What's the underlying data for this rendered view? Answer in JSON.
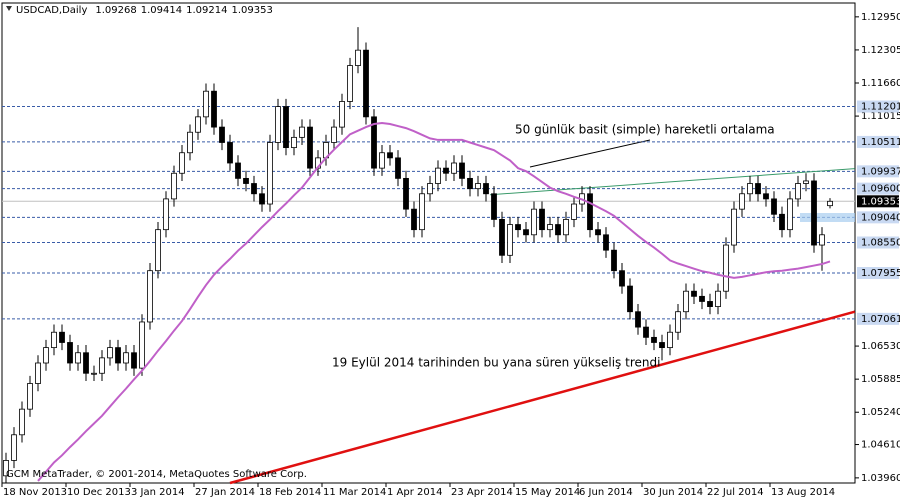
{
  "chart_data": {
    "type": "candlestick",
    "symbol": "USDCAD,Daily",
    "categories": [
      "18 Nov 2013",
      null,
      null,
      null,
      null,
      null,
      null,
      null,
      "10 Dec 2013",
      null,
      null,
      null,
      null,
      null,
      null,
      null,
      "3 Jan 2014",
      null,
      null,
      null,
      null,
      null,
      null,
      null,
      "27 Jan 2014",
      null,
      null,
      null,
      null,
      null,
      null,
      null,
      "18 Feb 2014",
      null,
      null,
      null,
      null,
      null,
      null,
      null,
      "11 Mar 2014",
      null,
      null,
      null,
      null,
      null,
      null,
      null,
      "1 Apr 2014",
      null,
      null,
      null,
      null,
      null,
      null,
      null,
      "23 Apr 2014",
      null,
      null,
      null,
      null,
      null,
      null,
      null,
      "15 May 2014",
      null,
      null,
      null,
      null,
      null,
      null,
      null,
      "6 Jun 2014",
      null,
      null,
      null,
      null,
      null,
      null,
      null,
      "30 Jun 2014",
      null,
      null,
      null,
      null,
      null,
      null,
      null,
      "22 Jul 2014",
      null,
      null,
      null,
      null,
      null,
      null,
      null,
      "13 Aug 2014",
      null,
      null,
      null,
      null,
      null,
      null,
      null
    ],
    "open": [
      1.04,
      1.043,
      1.048,
      1.053,
      1.058,
      1.062,
      1.065,
      1.068,
      1.066,
      1.062,
      1.064,
      1.06,
      1.06,
      1.063,
      1.065,
      1.062,
      1.064,
      1.061,
      1.07,
      1.08,
      1.088,
      1.094,
      1.099,
      1.103,
      1.107,
      1.11,
      1.115,
      1.108,
      1.105,
      1.101,
      1.098,
      1.097,
      1.095,
      1.093,
      1.105,
      1.112,
      1.104,
      1.106,
      1.108,
      1.1,
      1.102,
      1.105,
      1.108,
      1.113,
      1.12,
      1.123,
      1.11,
      1.1,
      1.103,
      1.102,
      1.098,
      1.092,
      1.088,
      1.095,
      1.097,
      1.1,
      1.099,
      1.101,
      1.098,
      1.096,
      1.097,
      1.095,
      1.09,
      1.083,
      1.089,
      1.088,
      1.087,
      1.092,
      1.088,
      1.089,
      1.087,
      1.09,
      1.093,
      1.095,
      1.088,
      1.087,
      1.084,
      1.08,
      1.077,
      1.072,
      1.069,
      1.067,
      1.066,
      1.065,
      1.068,
      1.072,
      1.076,
      1.075,
      1.074,
      1.073,
      1.076,
      1.085,
      1.092,
      1.095,
      1.097,
      1.095,
      1.094,
      1.091,
      1.088,
      1.094,
      1.097,
      1.0975,
      1.085,
      1.09268
    ],
    "high": [
      1.0445,
      1.0495,
      1.0545,
      1.0595,
      1.0635,
      1.0665,
      1.0695,
      1.0695,
      1.0675,
      1.0655,
      1.0655,
      1.0615,
      1.0645,
      1.0665,
      1.0665,
      1.0655,
      1.0655,
      1.0715,
      1.0815,
      1.0895,
      1.0955,
      1.1005,
      1.1045,
      1.1085,
      1.1115,
      1.1165,
      1.1165,
      1.1095,
      1.1065,
      1.1025,
      1.0995,
      1.0985,
      1.0965,
      1.1065,
      1.1135,
      1.1135,
      1.1075,
      1.1095,
      1.1095,
      1.1035,
      1.1065,
      1.1095,
      1.1145,
      1.1215,
      1.1275,
      1.1245,
      1.1115,
      1.1045,
      1.1045,
      1.1035,
      1.0995,
      1.0935,
      1.0965,
      1.0985,
      1.1015,
      1.1015,
      1.1025,
      1.1025,
      1.0995,
      1.0985,
      1.0985,
      1.0965,
      1.0915,
      1.0905,
      1.0905,
      1.0895,
      1.0935,
      1.0935,
      1.0905,
      1.0905,
      1.0915,
      1.0945,
      1.0965,
      1.0965,
      1.0895,
      1.0885,
      1.0855,
      1.0815,
      1.0785,
      1.0735,
      1.0705,
      1.0685,
      1.0675,
      1.0695,
      1.0735,
      1.0775,
      1.0775,
      1.0765,
      1.0755,
      1.0775,
      1.0865,
      1.0935,
      1.0965,
      1.0985,
      1.0985,
      1.0965,
      1.0955,
      1.0925,
      1.0955,
      1.0985,
      1.099,
      1.099,
      1.0885,
      1.09414
    ],
    "low": [
      1.0385,
      1.0415,
      1.0465,
      1.0515,
      1.0565,
      1.0605,
      1.0635,
      1.0645,
      1.0605,
      1.0605,
      1.0585,
      1.0585,
      1.0585,
      1.0615,
      1.0605,
      1.0605,
      1.0595,
      1.0595,
      1.0685,
      1.0785,
      1.0865,
      1.0925,
      1.0975,
      1.1015,
      1.1055,
      1.1085,
      1.1065,
      1.1035,
      1.0995,
      1.0965,
      1.0955,
      1.0935,
      1.0915,
      1.0915,
      1.1035,
      1.1025,
      1.1025,
      1.1045,
      1.0985,
      1.0985,
      1.1005,
      1.1035,
      1.1065,
      1.1115,
      1.1185,
      1.1085,
      1.0985,
      1.0985,
      1.1005,
      1.0965,
      1.0905,
      1.0865,
      1.0865,
      1.0935,
      1.0955,
      1.0975,
      1.0975,
      1.0965,
      1.0945,
      1.0945,
      1.0935,
      1.0885,
      1.0815,
      1.0815,
      1.0865,
      1.0855,
      1.0855,
      1.0865,
      1.0865,
      1.0855,
      1.0855,
      1.0885,
      1.0915,
      1.0865,
      1.0855,
      1.0825,
      1.0785,
      1.0755,
      1.0705,
      1.0675,
      1.0655,
      1.0645,
      1.0625,
      1.0635,
      1.0665,
      1.0705,
      1.0735,
      1.0725,
      1.0715,
      1.0715,
      1.0745,
      1.0835,
      1.0905,
      1.0935,
      1.0935,
      1.0925,
      1.0895,
      1.0865,
      1.0865,
      1.0925,
      1.0955,
      1.0835,
      1.08,
      1.09214
    ],
    "close": [
      1.043,
      1.048,
      1.053,
      1.058,
      1.062,
      1.065,
      1.068,
      1.066,
      1.062,
      1.064,
      1.06,
      1.06,
      1.063,
      1.065,
      1.062,
      1.064,
      1.061,
      1.07,
      1.08,
      1.088,
      1.094,
      1.099,
      1.103,
      1.107,
      1.11,
      1.115,
      1.108,
      1.105,
      1.101,
      1.098,
      1.097,
      1.095,
      1.093,
      1.105,
      1.112,
      1.104,
      1.106,
      1.108,
      1.1,
      1.102,
      1.105,
      1.108,
      1.113,
      1.12,
      1.123,
      1.11,
      1.1,
      1.103,
      1.102,
      1.098,
      1.092,
      1.088,
      1.095,
      1.097,
      1.1,
      1.099,
      1.101,
      1.098,
      1.096,
      1.097,
      1.095,
      1.09,
      1.083,
      1.089,
      1.088,
      1.087,
      1.092,
      1.088,
      1.089,
      1.087,
      1.09,
      1.093,
      1.095,
      1.088,
      1.087,
      1.084,
      1.08,
      1.077,
      1.072,
      1.069,
      1.067,
      1.066,
      1.065,
      1.068,
      1.072,
      1.076,
      1.075,
      1.074,
      1.073,
      1.076,
      1.085,
      1.092,
      1.095,
      1.097,
      1.095,
      1.094,
      1.091,
      1.088,
      1.094,
      1.097,
      1.0975,
      1.085,
      1.087,
      1.09353
    ],
    "ma": {
      "color": "#c060c8",
      "values": [
        null,
        null,
        null,
        null,
        1.039,
        1.0408,
        1.0426,
        1.044,
        1.0456,
        1.0471,
        1.0487,
        1.0502,
        1.0517,
        1.0535,
        1.0553,
        1.057,
        1.0588,
        1.0605,
        1.0624,
        1.0644,
        1.0663,
        1.0683,
        1.0702,
        1.0725,
        1.0749,
        1.0772,
        1.0792,
        1.0808,
        1.0823,
        1.0839,
        1.0853,
        1.0869,
        1.0885,
        1.09,
        1.0916,
        1.0931,
        1.0947,
        1.0962,
        1.0982,
        1.1002,
        1.102,
        1.1036,
        1.1051,
        1.1066,
        1.1073,
        1.108,
        1.1086,
        1.1088,
        1.1086,
        1.1082,
        1.1078,
        1.1072,
        1.1065,
        1.1058,
        1.1055,
        1.1055,
        1.1055,
        1.1055,
        1.105,
        1.1045,
        1.104,
        1.1035,
        1.1025,
        1.1015,
        1.1,
        1.0994,
        1.0984,
        1.0973,
        1.0962,
        1.0955,
        1.095,
        1.0944,
        1.0939,
        1.0932,
        1.0924,
        1.0916,
        1.0907,
        1.0894,
        1.0881,
        1.0868,
        1.0856,
        1.0845,
        1.0833,
        1.082,
        1.0814,
        1.0809,
        1.0804,
        1.0799,
        1.0796,
        1.0792,
        1.0789,
        1.0786,
        1.0788,
        1.0791,
        1.0794,
        1.0797,
        1.0799,
        1.08,
        1.0802,
        1.0804,
        1.0807,
        1.081,
        1.0813,
        1.0818
      ]
    },
    "ylim": [
      1.0386,
      1.1322
    ],
    "yticks": [
      {
        "value": 1.1295,
        "label": "1.12950"
      },
      1.12305,
      {
        "value": 1.1166,
        "label": "1.11660"
      },
      1.11015,
      {
        "value": 1.0653,
        "label": "1.06530"
      },
      1.05885,
      {
        "value": 1.0524,
        "label": "1.05240"
      },
      {
        "value": 1.0461,
        "label": "1.04610"
      },
      {
        "value": 1.0396,
        "label": "1.03960"
      }
    ],
    "levels": [
      1.11201,
      1.10511,
      1.09937,
      {
        "value": 1.096,
        "label": "1.09600"
      },
      {
        "value": 1.0904,
        "label": "1.09040"
      },
      {
        "value": 1.0855,
        "label": "1.08550"
      },
      1.07955,
      1.07061
    ],
    "level_color": "#3a5ca8",
    "trendlines": [
      {
        "color": "#e01010",
        "from": [
          28,
          1.0386
        ],
        "to": [
          106.1,
          1.072
        ]
      },
      {
        "color": "#3a9a6a",
        "from": [
          60.5,
          1.0948
        ],
        "to": [
          106.1,
          1.0999
        ]
      }
    ],
    "annotations": [
      "50 günlük basit (simple) hareketli ortalama",
      "19 Eylül 2014 tarihinden bu yana süren yükseliş trendi"
    ],
    "credit": "GCM MetaTrader, © 2001-2014, MetaQuotes Software Corp."
  }
}
